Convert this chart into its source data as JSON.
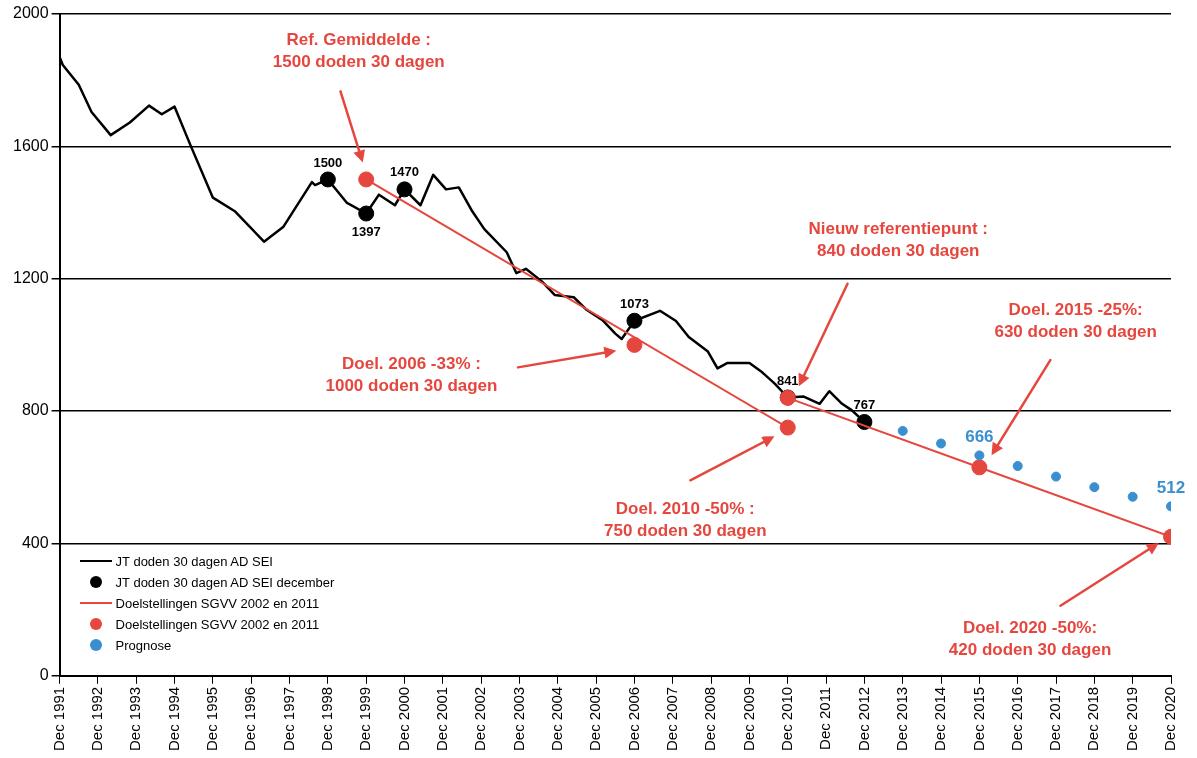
{
  "chart_data": {
    "type": "line",
    "xlim": [
      "1991-12",
      "2020-12"
    ],
    "xticks": [
      {
        "value": "1991-12",
        "label": "Dec 1991"
      },
      {
        "value": "1992-12",
        "label": "Dec 1992"
      },
      {
        "value": "1993-12",
        "label": "Dec 1993"
      },
      {
        "value": "1994-12",
        "label": "Dec 1994"
      },
      {
        "value": "1995-12",
        "label": "Dec 1995"
      },
      {
        "value": "1996-12",
        "label": "Dec 1996"
      },
      {
        "value": "1997-12",
        "label": "Dec 1997"
      },
      {
        "value": "1998-12",
        "label": "Dec 1998"
      },
      {
        "value": "1999-12",
        "label": "Dec 1999"
      },
      {
        "value": "2000-12",
        "label": "Dec 2000"
      },
      {
        "value": "2001-12",
        "label": "Dec 2001"
      },
      {
        "value": "2002-12",
        "label": "Dec 2002"
      },
      {
        "value": "2003-12",
        "label": "Dec 2003"
      },
      {
        "value": "2004-12",
        "label": "Dec 2004"
      },
      {
        "value": "2005-12",
        "label": "Dec 2005"
      },
      {
        "value": "2006-12",
        "label": "Dec 2006"
      },
      {
        "value": "2007-12",
        "label": "Dec 2007"
      },
      {
        "value": "2008-12",
        "label": "Dec 2008"
      },
      {
        "value": "2009-12",
        "label": "Dec 2009"
      },
      {
        "value": "2010-12",
        "label": "Dec 2010"
      },
      {
        "value": "2011-12",
        "label": "Dec 2011"
      },
      {
        "value": "2012-12",
        "label": "Dec 2012"
      },
      {
        "value": "2013-12",
        "label": "Dec 2013"
      },
      {
        "value": "2014-12",
        "label": "Dec 2014"
      },
      {
        "value": "2015-12",
        "label": "Dec 2015"
      },
      {
        "value": "2016-12",
        "label": "Dec 2016"
      },
      {
        "value": "2017-12",
        "label": "Dec 2017"
      },
      {
        "value": "2018-12",
        "label": "Dec 2018"
      },
      {
        "value": "2019-12",
        "label": "Dec 2019"
      },
      {
        "value": "2020-12",
        "label": "Dec 2020"
      }
    ],
    "ylim": [
      0,
      2000
    ],
    "yticks": [
      0,
      400,
      800,
      1200,
      1600,
      2000
    ],
    "grid": "y",
    "legend": "bottom left",
    "series": [
      {
        "name": "JT doden 30 dagen AD SEI",
        "type": "line",
        "color": "#000000",
        "x": [
          "1991-12",
          "1992-01",
          "1992-06",
          "1992-10",
          "1993-04",
          "1993-10",
          "1994-04",
          "1994-08",
          "1994-12",
          "1995-05",
          "1995-12",
          "1996-07",
          "1997-04",
          "1997-10",
          "1998-07",
          "1998-08",
          "1998-12",
          "1999-06",
          "1999-12",
          "2000-04",
          "2000-09",
          "2000-12",
          "2001-05",
          "2001-09",
          "2002-01",
          "2002-05",
          "2002-09",
          "2003-01",
          "2003-08",
          "2003-11",
          "2004-02",
          "2004-07",
          "2004-11",
          "2005-05",
          "2005-09",
          "2006-02",
          "2006-06",
          "2006-08",
          "2006-12",
          "2007-08",
          "2008-01",
          "2008-05",
          "2008-11",
          "2009-02",
          "2009-05",
          "2009-12",
          "2010-04",
          "2010-08",
          "2010-12",
          "2011-05",
          "2011-10",
          "2012-01",
          "2012-05",
          "2012-08",
          "2012-12"
        ],
        "values": [
          1870,
          1846,
          1786,
          1704,
          1634,
          1672,
          1723,
          1697,
          1720,
          1603,
          1445,
          1403,
          1312,
          1356,
          1492,
          1483,
          1500,
          1429,
          1397,
          1454,
          1422,
          1470,
          1422,
          1514,
          1470,
          1476,
          1407,
          1350,
          1280,
          1217,
          1230,
          1192,
          1151,
          1144,
          1106,
          1075,
          1034,
          1018,
          1073,
          1103,
          1072,
          1024,
          980,
          929,
          945,
          945,
          917,
          882,
          841,
          844,
          822,
          860,
          822,
          803,
          767
        ]
      },
      {
        "name": "JT doden 30 dagen AD SEI december",
        "type": "scatter",
        "color": "#000000",
        "x": [
          "1998-12",
          "1999-12",
          "2000-12",
          "2006-12",
          "2010-12",
          "2012-12"
        ],
        "values": [
          1500,
          1397,
          1470,
          1073,
          841,
          767
        ],
        "data_labels": true
      },
      {
        "name": "Doelstellingen SGVV 2002 en 2011",
        "type": "line",
        "color": "#e5473e",
        "x": [
          "1999-12",
          "2010-12"
        ],
        "values": [
          1500,
          750
        ]
      },
      {
        "type": "line",
        "color": "#e5473e",
        "x": [
          "2010-12",
          "2020-12"
        ],
        "values": [
          840,
          420
        ]
      },
      {
        "name": "Doelstellingen SGVV 2002 en 2011",
        "type": "scatter",
        "color": "#e5473e",
        "x": [
          "1999-12",
          "2006-12",
          "2010-12",
          "2010-12",
          "2015-12",
          "2020-12"
        ],
        "values": [
          1500,
          1000,
          750,
          840,
          630,
          420
        ]
      },
      {
        "name": "Prognose",
        "type": "scatter",
        "color": "#3a8fd0",
        "x": [
          "2013-12",
          "2014-12",
          "2015-12",
          "2016-12",
          "2017-12",
          "2018-12",
          "2019-12",
          "2020-12"
        ],
        "values": [
          740,
          702,
          666,
          634,
          602,
          570,
          541,
          512
        ],
        "value_labels": [
          null,
          null,
          "666",
          null,
          null,
          null,
          null,
          "512"
        ]
      }
    ],
    "annotations": [
      "Ref. Gemiddelde :\n1500 doden 30 dagen",
      "Doel. 2006 -33% :\n1000 doden 30 dagen",
      "Nieuw referentiepunt :\n840 doden 30 dagen",
      "Doel. 2010 -50% :\n750 doden 30 dagen",
      "Doel. 2015 -25%:\n630 doden 30 dagen",
      "Doel. 2020 -50%:\n420 doden 30 dagen"
    ]
  }
}
